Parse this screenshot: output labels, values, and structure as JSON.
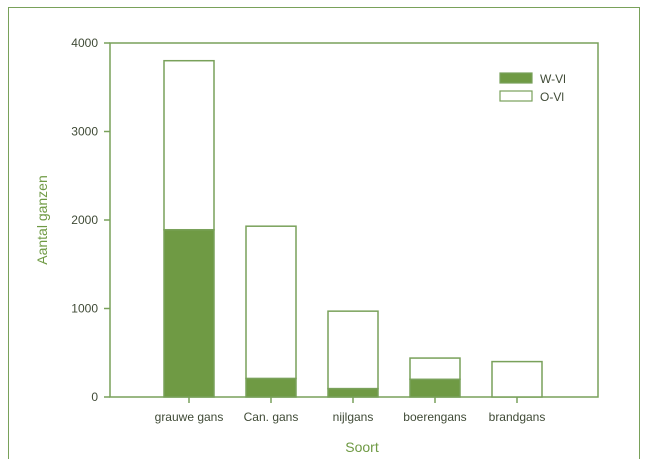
{
  "chart_data": {
    "type": "bar",
    "stacked": true,
    "xlabel": "Soort",
    "ylabel": "Aantal ganzen",
    "ylim": [
      0,
      4000
    ],
    "yticks": [
      0,
      1000,
      2000,
      3000,
      4000
    ],
    "categories": [
      "grauwe gans",
      "Can. gans",
      "nijlgans",
      "boerengans",
      "brandgans"
    ],
    "series": [
      {
        "name": "W-Vl",
        "values": [
          1890,
          210,
          95,
          200,
          0
        ]
      },
      {
        "name": "O-Vl",
        "values": [
          1910,
          1720,
          875,
          240,
          400
        ]
      }
    ],
    "legend_position": "top-right",
    "grid": false,
    "colors": {
      "W-Vl": "#6f9a44",
      "O-Vl": "#ffffff",
      "axis": "#79a15a",
      "text": "#3f4a36"
    }
  }
}
